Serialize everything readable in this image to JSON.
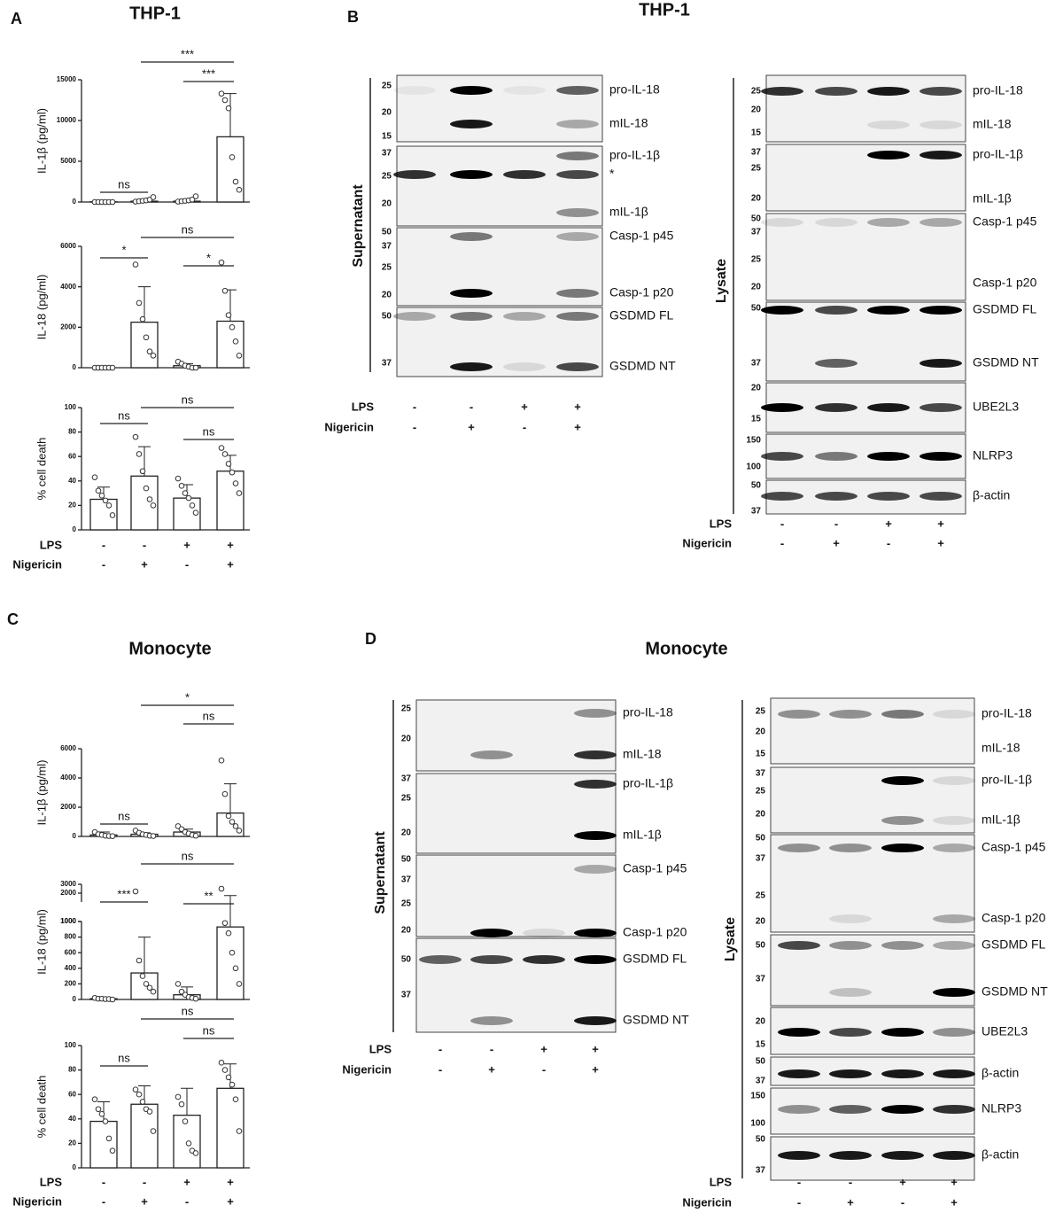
{
  "figure": {
    "panel_labels": [
      "A",
      "B",
      "C",
      "D"
    ],
    "titles": [
      "THP-1",
      "THP-1",
      "Monocyte",
      "Monocyte"
    ]
  },
  "conditions": {
    "rows": [
      {
        "name": "LPS",
        "signs": [
          "-",
          "-",
          "+",
          "+"
        ]
      },
      {
        "name": "Nigericin",
        "signs": [
          "-",
          "+",
          "-",
          "+"
        ]
      }
    ]
  },
  "chart_data": [
    {
      "type": "bar",
      "ylabel": "IL-1β (pg/ml)",
      "categories": [
        null,
        null,
        null,
        null
      ],
      "values": [
        30,
        100,
        100,
        8000
      ],
      "errors": [
        30,
        100,
        100,
        5300
      ],
      "points": [
        [
          0,
          0,
          0,
          0,
          0,
          0
        ],
        [
          50,
          100,
          150,
          200,
          300,
          600
        ],
        [
          50,
          100,
          150,
          200,
          300,
          700
        ],
        [
          13300,
          12500,
          11500,
          5500,
          2500,
          1500
        ]
      ],
      "ylim": [
        0,
        15000
      ],
      "yticks": [
        0,
        5000,
        10000,
        15000
      ],
      "color": "#ffffff",
      "annotations": [
        {
          "from": 0,
          "to": 1,
          "label": "ns"
        },
        {
          "from": 2,
          "to": 3,
          "label": "***"
        },
        {
          "from": 1,
          "to": 3,
          "label": "***"
        }
      ]
    },
    {
      "type": "bar",
      "ylabel": "IL-18 (pg/ml)",
      "categories": [
        null,
        null,
        null,
        null
      ],
      "values": [
        0,
        2250,
        100,
        2300
      ],
      "errors": [
        0,
        1750,
        100,
        1550
      ],
      "points": [
        [
          0,
          0,
          0,
          0,
          0,
          0
        ],
        [
          5100,
          3200,
          2400,
          1500,
          800,
          600
        ],
        [
          300,
          200,
          100,
          50,
          0,
          0
        ],
        [
          5200,
          3800,
          2600,
          2000,
          1300,
          600
        ]
      ],
      "ylim": [
        0,
        6000
      ],
      "yticks": [
        0,
        2000,
        4000,
        6000
      ],
      "color": "#ffffff",
      "annotations": [
        {
          "from": 0,
          "to": 1,
          "label": "*"
        },
        {
          "from": 2,
          "to": 3,
          "label": "*"
        },
        {
          "from": 1,
          "to": 3,
          "label": "ns"
        }
      ]
    },
    {
      "type": "bar",
      "ylabel": "% cell death",
      "categories": [
        null,
        null,
        null,
        null
      ],
      "values": [
        25,
        44,
        26,
        48
      ],
      "errors": [
        10,
        24,
        11,
        13
      ],
      "points": [
        [
          43,
          32,
          28,
          24,
          20,
          12
        ],
        [
          76,
          62,
          48,
          34,
          25,
          20
        ],
        [
          42,
          36,
          30,
          26,
          20,
          14
        ],
        [
          67,
          62,
          54,
          47,
          38,
          30
        ]
      ],
      "ylim": [
        0,
        100
      ],
      "yticks": [
        0,
        20,
        40,
        60,
        80,
        100
      ],
      "color": "#ffffff",
      "annotations": [
        {
          "from": 0,
          "to": 1,
          "label": "ns"
        },
        {
          "from": 2,
          "to": 3,
          "label": "ns"
        },
        {
          "from": 1,
          "to": 3,
          "label": "ns"
        }
      ]
    },
    {
      "type": "bar",
      "ylabel": "IL-1β (pg/ml)",
      "categories": [
        null,
        null,
        null,
        null
      ],
      "values": [
        100,
        150,
        300,
        1600
      ],
      "errors": [
        200,
        100,
        200,
        2000
      ],
      "points": [
        [
          300,
          150,
          100,
          50,
          30,
          20
        ],
        [
          400,
          250,
          150,
          100,
          50,
          30
        ],
        [
          700,
          500,
          300,
          200,
          100,
          50
        ],
        [
          5200,
          2900,
          1400,
          1000,
          700,
          400
        ]
      ],
      "ylim": [
        0,
        6000
      ],
      "yticks": [
        0,
        2000,
        4000,
        6000
      ],
      "color": "#ffffff",
      "annotations": [
        {
          "from": 1,
          "to": 3,
          "label": "*"
        },
        {
          "from": 2,
          "to": 3,
          "label": "ns"
        },
        {
          "from": 0,
          "to": 1,
          "label": "ns"
        }
      ]
    },
    {
      "type": "bar",
      "ylabel": "IL-18 (pg/ml)",
      "categories": [
        null,
        null,
        null,
        null
      ],
      "values": [
        10,
        340,
        60,
        930
      ],
      "errors": [
        10,
        460,
        100,
        800
      ],
      "points": [
        [
          20,
          10,
          10,
          5,
          5,
          0
        ],
        [
          2200,
          500,
          300,
          200,
          150,
          100
        ],
        [
          200,
          100,
          60,
          30,
          20,
          10
        ],
        [
          2500,
          980,
          850,
          600,
          400,
          200
        ]
      ],
      "ylim": [
        0,
        1000
      ],
      "yticks": [
        0,
        200,
        400,
        600,
        800,
        1000
      ],
      "y_break": {
        "ylim": [
          1000,
          3000
        ],
        "yticks": [
          1000,
          2000,
          3000
        ]
      },
      "color": "#ffffff",
      "annotations": [
        {
          "from": 0,
          "to": 1,
          "label": "***"
        },
        {
          "from": 2,
          "to": 3,
          "label": "**"
        },
        {
          "from": 1,
          "to": 3,
          "label": "ns"
        }
      ]
    },
    {
      "type": "bar",
      "ylabel": "% cell death",
      "categories": [
        null,
        null,
        null,
        null
      ],
      "values": [
        38,
        52,
        43,
        65
      ],
      "errors": [
        16,
        15,
        22,
        20
      ],
      "points": [
        [
          56,
          48,
          44,
          38,
          24,
          14
        ],
        [
          64,
          60,
          54,
          48,
          46,
          30
        ],
        [
          58,
          52,
          38,
          20,
          14,
          12
        ],
        [
          86,
          80,
          74,
          68,
          56,
          30
        ]
      ],
      "ylim": [
        0,
        100
      ],
      "yticks": [
        0,
        20,
        40,
        60,
        80,
        100
      ],
      "color": "#ffffff",
      "annotations": [
        {
          "from": 0,
          "to": 1,
          "label": "ns"
        },
        {
          "from": 2,
          "to": 3,
          "label": "ns"
        },
        {
          "from": 1,
          "to": 3,
          "label": "ns"
        }
      ]
    }
  ],
  "blots": [
    {
      "label": "Supernatant",
      "strips": [
        {
          "markers": [
            "25",
            "20",
            "15"
          ],
          "bands": [
            "pro-IL-18",
            "mIL-18"
          ]
        },
        {
          "markers": [
            "37",
            "25",
            "20"
          ],
          "bands": [
            "pro-IL-1β",
            "*",
            "mIL-1β"
          ]
        },
        {
          "markers": [
            "50",
            "37",
            "25",
            "20"
          ],
          "bands": [
            "Casp-1 p45",
            "Casp-1 p20"
          ]
        },
        {
          "markers": [
            "50",
            "37"
          ],
          "bands": [
            "GSDMD FL",
            "GSDMD NT"
          ]
        }
      ]
    },
    {
      "label": "Lysate",
      "strips": [
        {
          "markers": [
            "25",
            "20",
            "15"
          ],
          "bands": [
            "pro-IL-18",
            "mIL-18"
          ]
        },
        {
          "markers": [
            "37",
            "25",
            "20"
          ],
          "bands": [
            "pro-IL-1β",
            "mIL-1β"
          ]
        },
        {
          "markers": [
            "50",
            "37",
            "25",
            "20"
          ],
          "bands": [
            "Casp-1 p45",
            "Casp-1 p20"
          ]
        },
        {
          "markers": [
            "50",
            "37"
          ],
          "bands": [
            "GSDMD FL",
            "GSDMD NT"
          ]
        },
        {
          "markers": [
            "20",
            "15"
          ],
          "bands": [
            "UBE2L3"
          ]
        },
        {
          "markers": [
            "150",
            "100"
          ],
          "bands": [
            "NLRP3"
          ]
        },
        {
          "markers": [
            "50",
            "37"
          ],
          "bands": [
            "β-actin"
          ]
        }
      ]
    },
    {
      "label": "Supernatant",
      "strips": [
        {
          "markers": [
            "25",
            "20"
          ],
          "bands": [
            "pro-IL-18",
            "mIL-18"
          ]
        },
        {
          "markers": [
            "37",
            "25",
            "20"
          ],
          "bands": [
            "pro-IL-1β",
            "mIL-1β"
          ]
        },
        {
          "markers": [
            "50",
            "37",
            "25",
            "20"
          ],
          "bands": [
            "Casp-1 p45",
            "Casp-1 p20"
          ]
        },
        {
          "markers": [
            "50",
            "37"
          ],
          "bands": [
            "GSDMD FL",
            "GSDMD NT"
          ]
        }
      ]
    },
    {
      "label": "Lysate",
      "strips": [
        {
          "markers": [
            "25",
            "20",
            "15"
          ],
          "bands": [
            "pro-IL-18",
            "mIL-18"
          ]
        },
        {
          "markers": [
            "37",
            "25",
            "20"
          ],
          "bands": [
            "pro-IL-1β",
            "mIL-1β"
          ]
        },
        {
          "markers": [
            "50",
            "37",
            "25",
            "20"
          ],
          "bands": [
            "Casp-1 p45",
            "Casp-1 p20"
          ]
        },
        {
          "markers": [
            "50",
            "37"
          ],
          "bands": [
            "GSDMD FL",
            "GSDMD NT"
          ]
        },
        {
          "markers": [
            "20",
            "15"
          ],
          "bands": [
            "UBE2L3"
          ]
        },
        {
          "markers": [
            "50",
            "37"
          ],
          "bands": [
            "β-actin"
          ]
        },
        {
          "markers": [
            "150",
            "100"
          ],
          "bands": [
            "NLRP3"
          ]
        },
        {
          "markers": [
            "50",
            "37"
          ],
          "bands": [
            "β-actin"
          ]
        }
      ]
    }
  ]
}
